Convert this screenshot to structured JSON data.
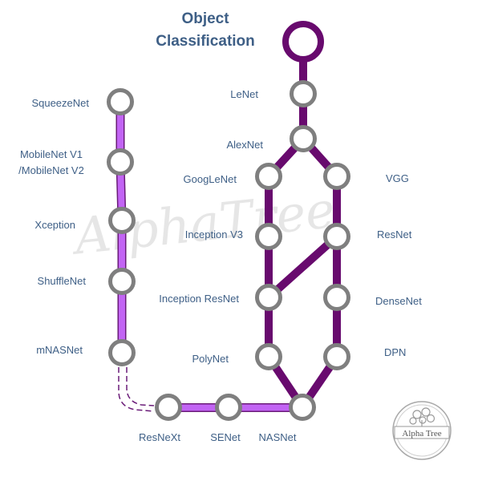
{
  "title": {
    "line1": "Object",
    "line2": "Classification"
  },
  "watermark": "AlphaTree",
  "logo_text": "Alpha Tree",
  "colors": {
    "dark_line": "#680a6e",
    "light_line": "#c264f4",
    "light_line_border": "#6a1b78",
    "node_stroke": "#7f7f7f",
    "label_text": "#3e5f86"
  },
  "nodes": {
    "root": "",
    "lenet": "LeNet",
    "alexnet": "AlexNet",
    "googlenet": "GoogLeNet",
    "vgg": "VGG",
    "inception_v3": "Inception V3",
    "resnet": "ResNet",
    "inception_resnet": "Inception ResNet",
    "densenet": "DenseNet",
    "polynet": "PolyNet",
    "dpn": "DPN",
    "nasnet": "NASNet",
    "senet": "SENet",
    "resnext": "ResNeXt",
    "squeezenet": "SqueezeNet",
    "mobilenet_line1": "MobileNet V1",
    "mobilenet_line2": "/MobileNet V2",
    "xception": "Xception",
    "shufflenet": "ShuffleNet",
    "mnasnet": "mNASNet"
  }
}
